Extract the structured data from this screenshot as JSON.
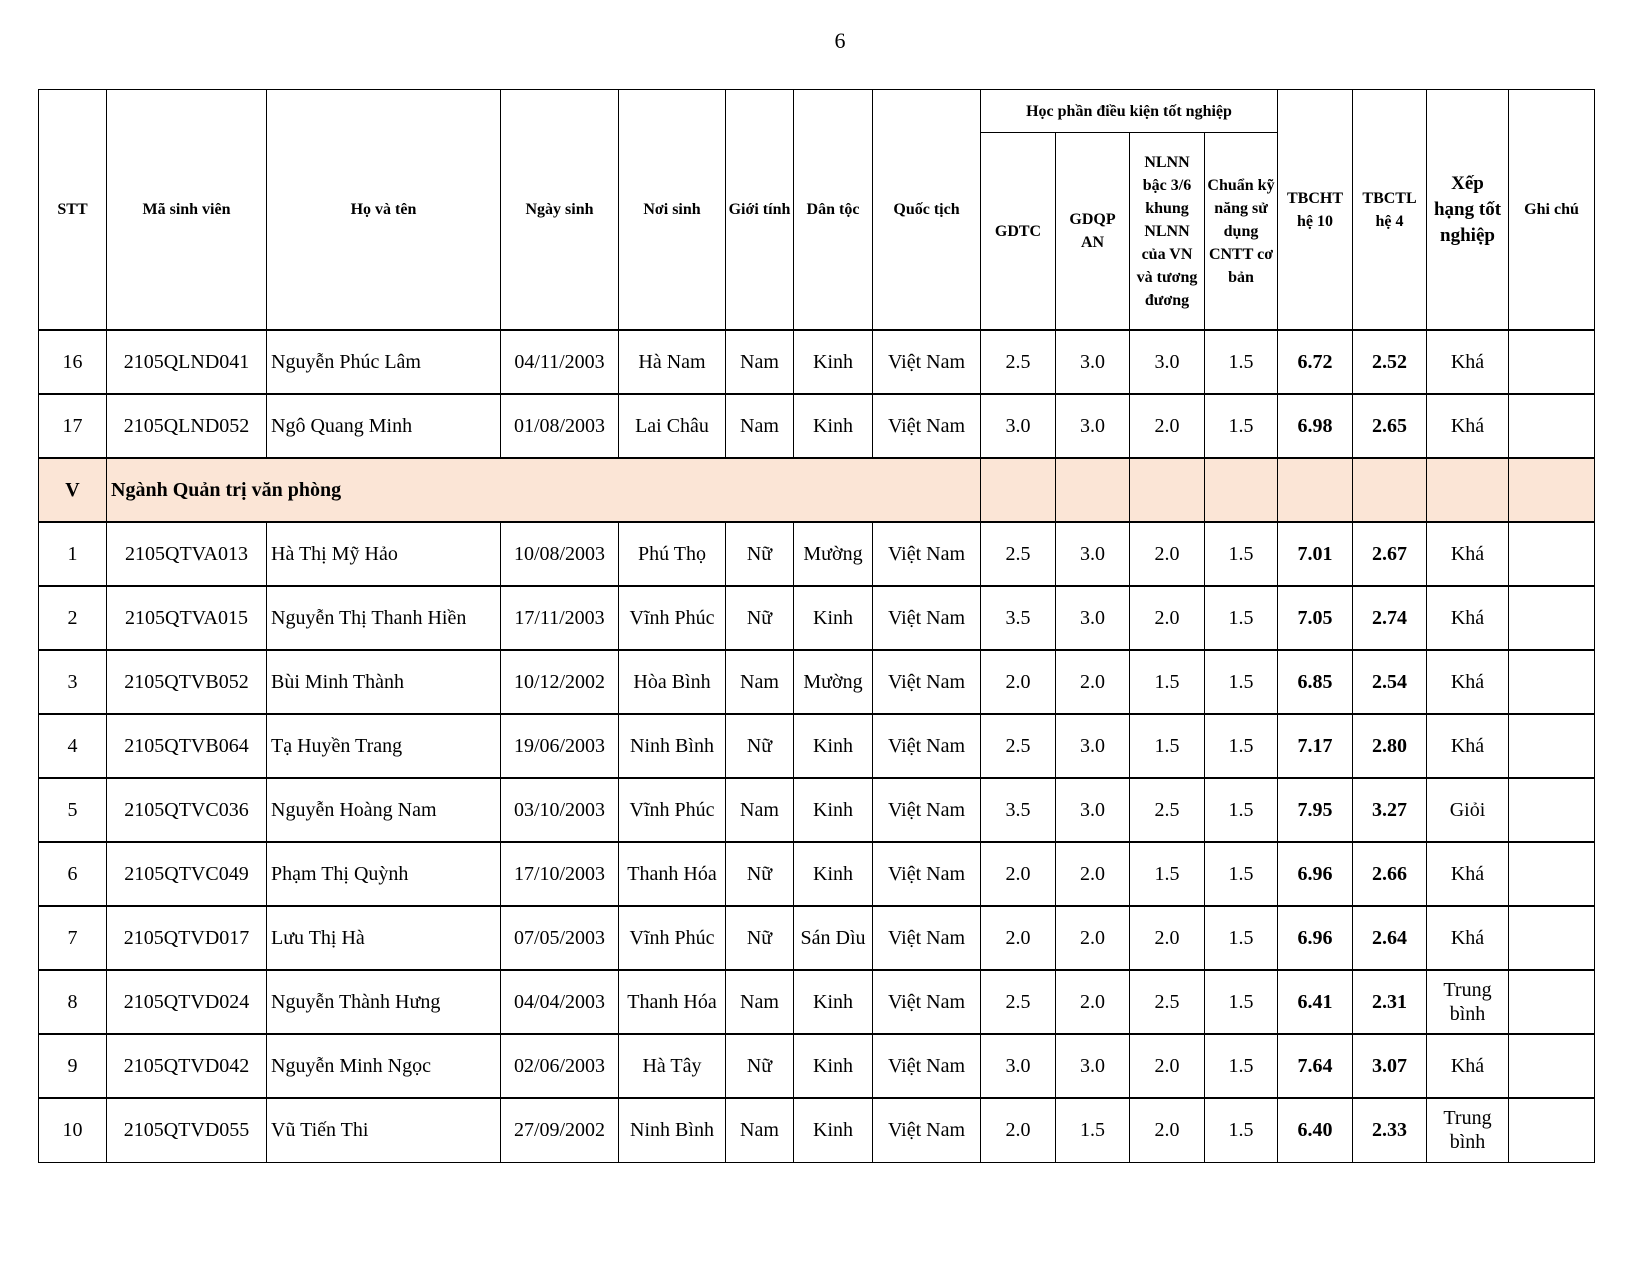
{
  "page_number": "6",
  "header": {
    "stt": "STT",
    "student_id": "Mã sinh viên",
    "full_name": "Họ và tên",
    "dob": "Ngày sinh",
    "birthplace": "Nơi sinh",
    "gender": "Giới tính",
    "ethnicity": "Dân tộc",
    "nationality": "Quốc tịch",
    "group": "Học phần điều kiện tốt nghiệp",
    "gdtc": "GDTC",
    "gdqp": "GDQP AN",
    "nlnn": "NLNN bậc 3/6 khung NLNN của VN và tương đương",
    "cntt": "Chuẩn kỹ năng sử dụng CNTT cơ bản",
    "tbcht": "TBCHT hệ 10",
    "tbctl": "TBCTL hệ 4",
    "rank": "Xếp hạng tốt nghiệp",
    "note": "Ghi chú"
  },
  "rows_before": [
    {
      "stt": "16",
      "id": "2105QLND041",
      "name": "Nguyễn Phúc Lâm",
      "dob": "04/11/2003",
      "place": "Hà Nam",
      "gender": "Nam",
      "eth": "Kinh",
      "nat": "Việt Nam",
      "gdtc": "2.5",
      "gdqp": "3.0",
      "nlnn": "3.0",
      "cntt": "1.5",
      "tbcht": "6.72",
      "tbctl": "2.52",
      "rank": "Khá",
      "note": ""
    },
    {
      "stt": "17",
      "id": "2105QLND052",
      "name": "Ngô Quang Minh",
      "dob": "01/08/2003",
      "place": "Lai Châu",
      "gender": "Nam",
      "eth": "Kinh",
      "nat": "Việt Nam",
      "gdtc": "3.0",
      "gdqp": "3.0",
      "nlnn": "2.0",
      "cntt": "1.5",
      "tbcht": "6.98",
      "tbctl": "2.65",
      "rank": "Khá",
      "note": ""
    }
  ],
  "section": {
    "stt": "V",
    "title": "Ngành Quản trị văn phòng",
    "highlight_color": "#fbe5d6"
  },
  "rows_after": [
    {
      "stt": "1",
      "id": "2105QTVA013",
      "name": "Hà Thị Mỹ Hảo",
      "dob": "10/08/2003",
      "place": "Phú Thọ",
      "gender": "Nữ",
      "eth": "Mường",
      "nat": "Việt Nam",
      "gdtc": "2.5",
      "gdqp": "3.0",
      "nlnn": "2.0",
      "cntt": "1.5",
      "tbcht": "7.01",
      "tbctl": "2.67",
      "rank": "Khá",
      "note": ""
    },
    {
      "stt": "2",
      "id": "2105QTVA015",
      "name": "Nguyễn Thị Thanh Hiền",
      "dob": "17/11/2003",
      "place": "Vĩnh Phúc",
      "gender": "Nữ",
      "eth": "Kinh",
      "nat": "Việt Nam",
      "gdtc": "3.5",
      "gdqp": "3.0",
      "nlnn": "2.0",
      "cntt": "1.5",
      "tbcht": "7.05",
      "tbctl": "2.74",
      "rank": "Khá",
      "note": ""
    },
    {
      "stt": "3",
      "id": "2105QTVB052",
      "name": "Bùi Minh Thành",
      "dob": "10/12/2002",
      "place": "Hòa Bình",
      "gender": "Nam",
      "eth": "Mường",
      "nat": "Việt Nam",
      "gdtc": "2.0",
      "gdqp": "2.0",
      "nlnn": "1.5",
      "cntt": "1.5",
      "tbcht": "6.85",
      "tbctl": "2.54",
      "rank": "Khá",
      "note": ""
    },
    {
      "stt": "4",
      "id": "2105QTVB064",
      "name": "Tạ Huyền Trang",
      "dob": "19/06/2003",
      "place": "Ninh Bình",
      "gender": "Nữ",
      "eth": "Kinh",
      "nat": "Việt Nam",
      "gdtc": "2.5",
      "gdqp": "3.0",
      "nlnn": "1.5",
      "cntt": "1.5",
      "tbcht": "7.17",
      "tbctl": "2.80",
      "rank": "Khá",
      "note": ""
    },
    {
      "stt": "5",
      "id": "2105QTVC036",
      "name": "Nguyễn Hoàng Nam",
      "dob": "03/10/2003",
      "place": "Vĩnh Phúc",
      "gender": "Nam",
      "eth": "Kinh",
      "nat": "Việt Nam",
      "gdtc": "3.5",
      "gdqp": "3.0",
      "nlnn": "2.5",
      "cntt": "1.5",
      "tbcht": "7.95",
      "tbctl": "3.27",
      "rank": "Giỏi",
      "note": ""
    },
    {
      "stt": "6",
      "id": "2105QTVC049",
      "name": "Phạm Thị Quỳnh",
      "dob": "17/10/2003",
      "place": "Thanh Hóa",
      "gender": "Nữ",
      "eth": "Kinh",
      "nat": "Việt Nam",
      "gdtc": "2.0",
      "gdqp": "2.0",
      "nlnn": "1.5",
      "cntt": "1.5",
      "tbcht": "6.96",
      "tbctl": "2.66",
      "rank": "Khá",
      "note": ""
    },
    {
      "stt": "7",
      "id": "2105QTVD017",
      "name": "Lưu Thị Hà",
      "dob": "07/05/2003",
      "place": "Vĩnh Phúc",
      "gender": "Nữ",
      "eth": "Sán Dìu",
      "nat": "Việt Nam",
      "gdtc": "2.0",
      "gdqp": "2.0",
      "nlnn": "2.0",
      "cntt": "1.5",
      "tbcht": "6.96",
      "tbctl": "2.64",
      "rank": "Khá",
      "note": ""
    },
    {
      "stt": "8",
      "id": "2105QTVD024",
      "name": "Nguyễn Thành Hưng",
      "dob": "04/04/2003",
      "place": "Thanh Hóa",
      "gender": "Nam",
      "eth": "Kinh",
      "nat": "Việt Nam",
      "gdtc": "2.5",
      "gdqp": "2.0",
      "nlnn": "2.5",
      "cntt": "1.5",
      "tbcht": "6.41",
      "tbctl": "2.31",
      "rank": "Trung bình",
      "note": ""
    },
    {
      "stt": "9",
      "id": "2105QTVD042",
      "name": "Nguyễn Minh Ngọc",
      "dob": "02/06/2003",
      "place": "Hà Tây",
      "gender": "Nữ",
      "eth": "Kinh",
      "nat": "Việt Nam",
      "gdtc": "3.0",
      "gdqp": "3.0",
      "nlnn": "2.0",
      "cntt": "1.5",
      "tbcht": "7.64",
      "tbctl": "3.07",
      "rank": "Khá",
      "note": ""
    },
    {
      "stt": "10",
      "id": "2105QTVD055",
      "name": "Vũ Tiến Thi",
      "dob": "27/09/2002",
      "place": "Ninh Bình",
      "gender": "Nam",
      "eth": "Kinh",
      "nat": "Việt Nam",
      "gdtc": "2.0",
      "gdqp": "1.5",
      "nlnn": "2.0",
      "cntt": "1.5",
      "tbcht": "6.40",
      "tbctl": "2.33",
      "rank": "Trung bình",
      "note": ""
    }
  ]
}
